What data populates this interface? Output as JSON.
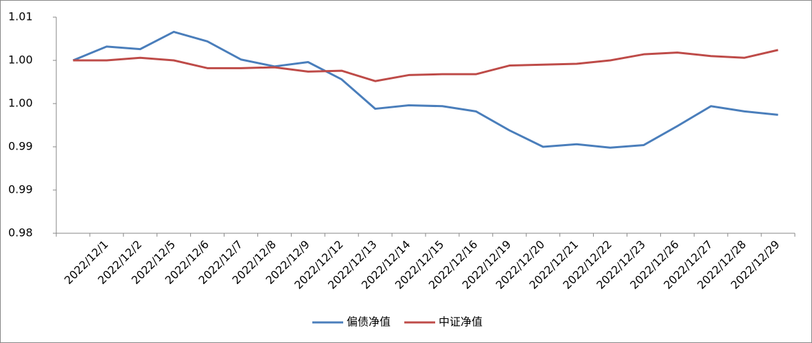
{
  "chart_data": {
    "type": "line",
    "categories": [
      null,
      "2022/12/1",
      "2022/12/2",
      "2022/12/5",
      "2022/12/6",
      "2022/12/7",
      "2022/12/8",
      "2022/12/9",
      "2022/12/12",
      "2022/12/13",
      "2022/12/14",
      "2022/12/15",
      "2022/12/16",
      "2022/12/19",
      "2022/12/20",
      "2022/12/21",
      "2022/12/22",
      "2022/12/23",
      "2022/12/26",
      "2022/12/27",
      "2022/12/28",
      "2022/12/29"
    ],
    "series": [
      {
        "name": "偏债净值",
        "color": "#4a7ebb",
        "values": [
          1.005,
          1.0066,
          1.0063,
          1.0083,
          1.0072,
          1.0051,
          1.0043,
          1.0048,
          1.0028,
          0.9994,
          0.9998,
          0.9997,
          0.9991,
          0.9969,
          0.995,
          0.9953,
          0.9949,
          0.9952,
          0.9974,
          0.9997,
          0.9991,
          0.9987
        ]
      },
      {
        "name": "中证净值",
        "color": "#be4b48",
        "values": [
          1.005,
          1.005,
          1.0053,
          1.005,
          1.0041,
          1.0041,
          1.0042,
          1.0037,
          1.0038,
          1.0026,
          1.0033,
          1.0034,
          1.0034,
          1.0044,
          1.0045,
          1.0046,
          1.005,
          1.0057,
          1.0059,
          1.0055,
          1.0053,
          1.0062
        ]
      }
    ],
    "ylim": [
      0.985,
      1.01
    ],
    "yticks": [
      {
        "value": 0.985,
        "label": "0.98"
      },
      {
        "value": 0.99,
        "label": "0.99"
      },
      {
        "value": 0.995,
        "label": "0.99"
      },
      {
        "value": 1.0,
        "label": "1.00"
      },
      {
        "value": 1.005,
        "label": "1.00"
      },
      {
        "value": 1.01,
        "label": "1.01"
      }
    ],
    "grid": false,
    "legend": "bottom"
  }
}
